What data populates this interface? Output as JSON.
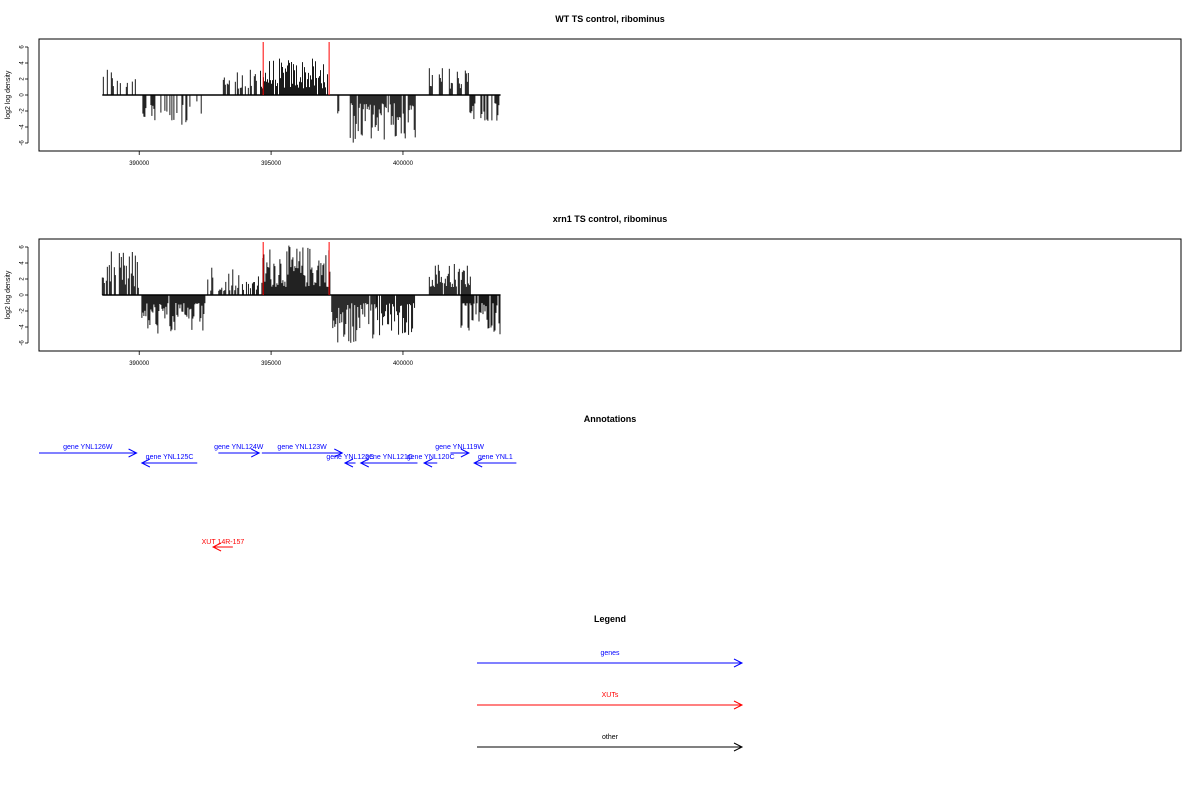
{
  "colors": {
    "genes": "#0000ff",
    "xuts": "#ff0000",
    "other": "#000000",
    "marker": "#ff0000",
    "bars": "#000000"
  },
  "chart_data": [
    {
      "type": "bar",
      "title": "WT TS control, ribominus",
      "ylabel": "log2 log density",
      "xlim": [
        386200,
        429500
      ],
      "ylim": [
        -7,
        7
      ],
      "xticks": [
        390000,
        395000,
        400000
      ],
      "xtick_labels": [
        "390000",
        "395000",
        "400000"
      ],
      "yticks": [
        6,
        4,
        2,
        0,
        -2,
        -4,
        -6
      ],
      "ytick_labels": [
        "6",
        "4",
        "2",
        "0",
        "-2",
        "-4",
        "-6"
      ],
      "markers": [
        394700,
        397200
      ],
      "segments": [
        {
          "start": 388600,
          "end": 389900,
          "sign": 1,
          "density": 0.35,
          "min": 0.8,
          "max": 3.6
        },
        {
          "start": 390100,
          "end": 392200,
          "sign": -1,
          "density": 0.4,
          "min": 0.8,
          "max": 4.0
        },
        {
          "start": 392350,
          "end": 392450,
          "sign": -1,
          "density": 0.5,
          "min": 1.5,
          "max": 3.5
        },
        {
          "start": 393000,
          "end": 394550,
          "sign": 1,
          "density": 0.45,
          "min": 0.8,
          "max": 3.2
        },
        {
          "start": 394600,
          "end": 397200,
          "sign": 1,
          "density": 0.95,
          "min": 0.8,
          "max": 4.6
        },
        {
          "start": 397300,
          "end": 397600,
          "sign": -1,
          "density": 0.5,
          "min": 1.0,
          "max": 2.8
        },
        {
          "start": 398000,
          "end": 400500,
          "sign": -1,
          "density": 0.9,
          "min": 1.0,
          "max": 6.0
        },
        {
          "start": 401000,
          "end": 402500,
          "sign": 1,
          "density": 0.45,
          "min": 0.8,
          "max": 3.5
        },
        {
          "start": 402500,
          "end": 403700,
          "sign": -1,
          "density": 0.5,
          "min": 0.8,
          "max": 3.6
        }
      ]
    },
    {
      "type": "bar",
      "title": "xrn1 TS control, ribominus",
      "ylabel": "log2 log density",
      "xlim": [
        386200,
        429500
      ],
      "ylim": [
        -7,
        7
      ],
      "xticks": [
        390000,
        395000,
        400000
      ],
      "xtick_labels": [
        "390000",
        "395000",
        "400000"
      ],
      "yticks": [
        6,
        4,
        2,
        0,
        -2,
        -4,
        -6
      ],
      "ytick_labels": [
        "6",
        "4",
        "2",
        "0",
        "-2",
        "-4",
        "-6"
      ],
      "markers": [
        394700,
        397200
      ],
      "segments": [
        {
          "start": 388600,
          "end": 390000,
          "sign": 1,
          "density": 0.8,
          "min": 0.8,
          "max": 5.5
        },
        {
          "start": 390100,
          "end": 392500,
          "sign": -1,
          "density": 0.95,
          "min": 1.0,
          "max": 5.0
        },
        {
          "start": 392600,
          "end": 393800,
          "sign": 1,
          "density": 0.6,
          "min": 0.5,
          "max": 4.2
        },
        {
          "start": 393800,
          "end": 394600,
          "sign": 1,
          "density": 0.4,
          "min": 0.5,
          "max": 2.5
        },
        {
          "start": 394650,
          "end": 397250,
          "sign": 1,
          "density": 1.0,
          "min": 1.0,
          "max": 6.2
        },
        {
          "start": 397300,
          "end": 399000,
          "sign": -1,
          "density": 0.95,
          "min": 1.0,
          "max": 6.5
        },
        {
          "start": 399000,
          "end": 400550,
          "sign": -1,
          "density": 0.9,
          "min": 1.0,
          "max": 5.2
        },
        {
          "start": 401000,
          "end": 402600,
          "sign": 1,
          "density": 0.9,
          "min": 1.0,
          "max": 4.0
        },
        {
          "start": 402200,
          "end": 403700,
          "sign": -1,
          "density": 0.9,
          "min": 1.0,
          "max": 5.0
        }
      ]
    }
  ],
  "annotations": {
    "title": "Annotations",
    "genes": [
      {
        "label": "gene YNL126W",
        "start": 386200,
        "end": 389900,
        "strand": "+",
        "row": 0
      },
      {
        "label": "gene YNL125C",
        "start": 390100,
        "end": 392200,
        "strand": "-",
        "row": 1
      },
      {
        "label": "gene YNL124W",
        "start": 393000,
        "end": 394550,
        "strand": "+",
        "row": 0
      },
      {
        "label": "gene YNL123W",
        "start": 394650,
        "end": 397700,
        "strand": "+",
        "row": 0
      },
      {
        "label": "gene YNL122C",
        "start": 397800,
        "end": 398200,
        "strand": "-",
        "row": 1
      },
      {
        "label": "gene YNL121C",
        "start": 398400,
        "end": 400550,
        "strand": "-",
        "row": 1
      },
      {
        "label": "gene YNL120C",
        "start": 400800,
        "end": 401300,
        "strand": "-",
        "row": 1
      },
      {
        "label": "gene YNL119W",
        "start": 401800,
        "end": 402500,
        "strand": "+",
        "row": 0
      },
      {
        "label": "gene YNL1",
        "start": 402700,
        "end": 404300,
        "strand": "-",
        "row": 1
      }
    ],
    "xuts": [
      {
        "label": "XUT 14R-157",
        "start": 392800,
        "end": 393550,
        "strand": "-"
      }
    ]
  },
  "legend": {
    "title": "Legend",
    "items": [
      {
        "label": "genes",
        "color": "#0000ff"
      },
      {
        "label": "XUTs",
        "color": "#ff0000"
      },
      {
        "label": "other",
        "color": "#000000"
      }
    ]
  }
}
